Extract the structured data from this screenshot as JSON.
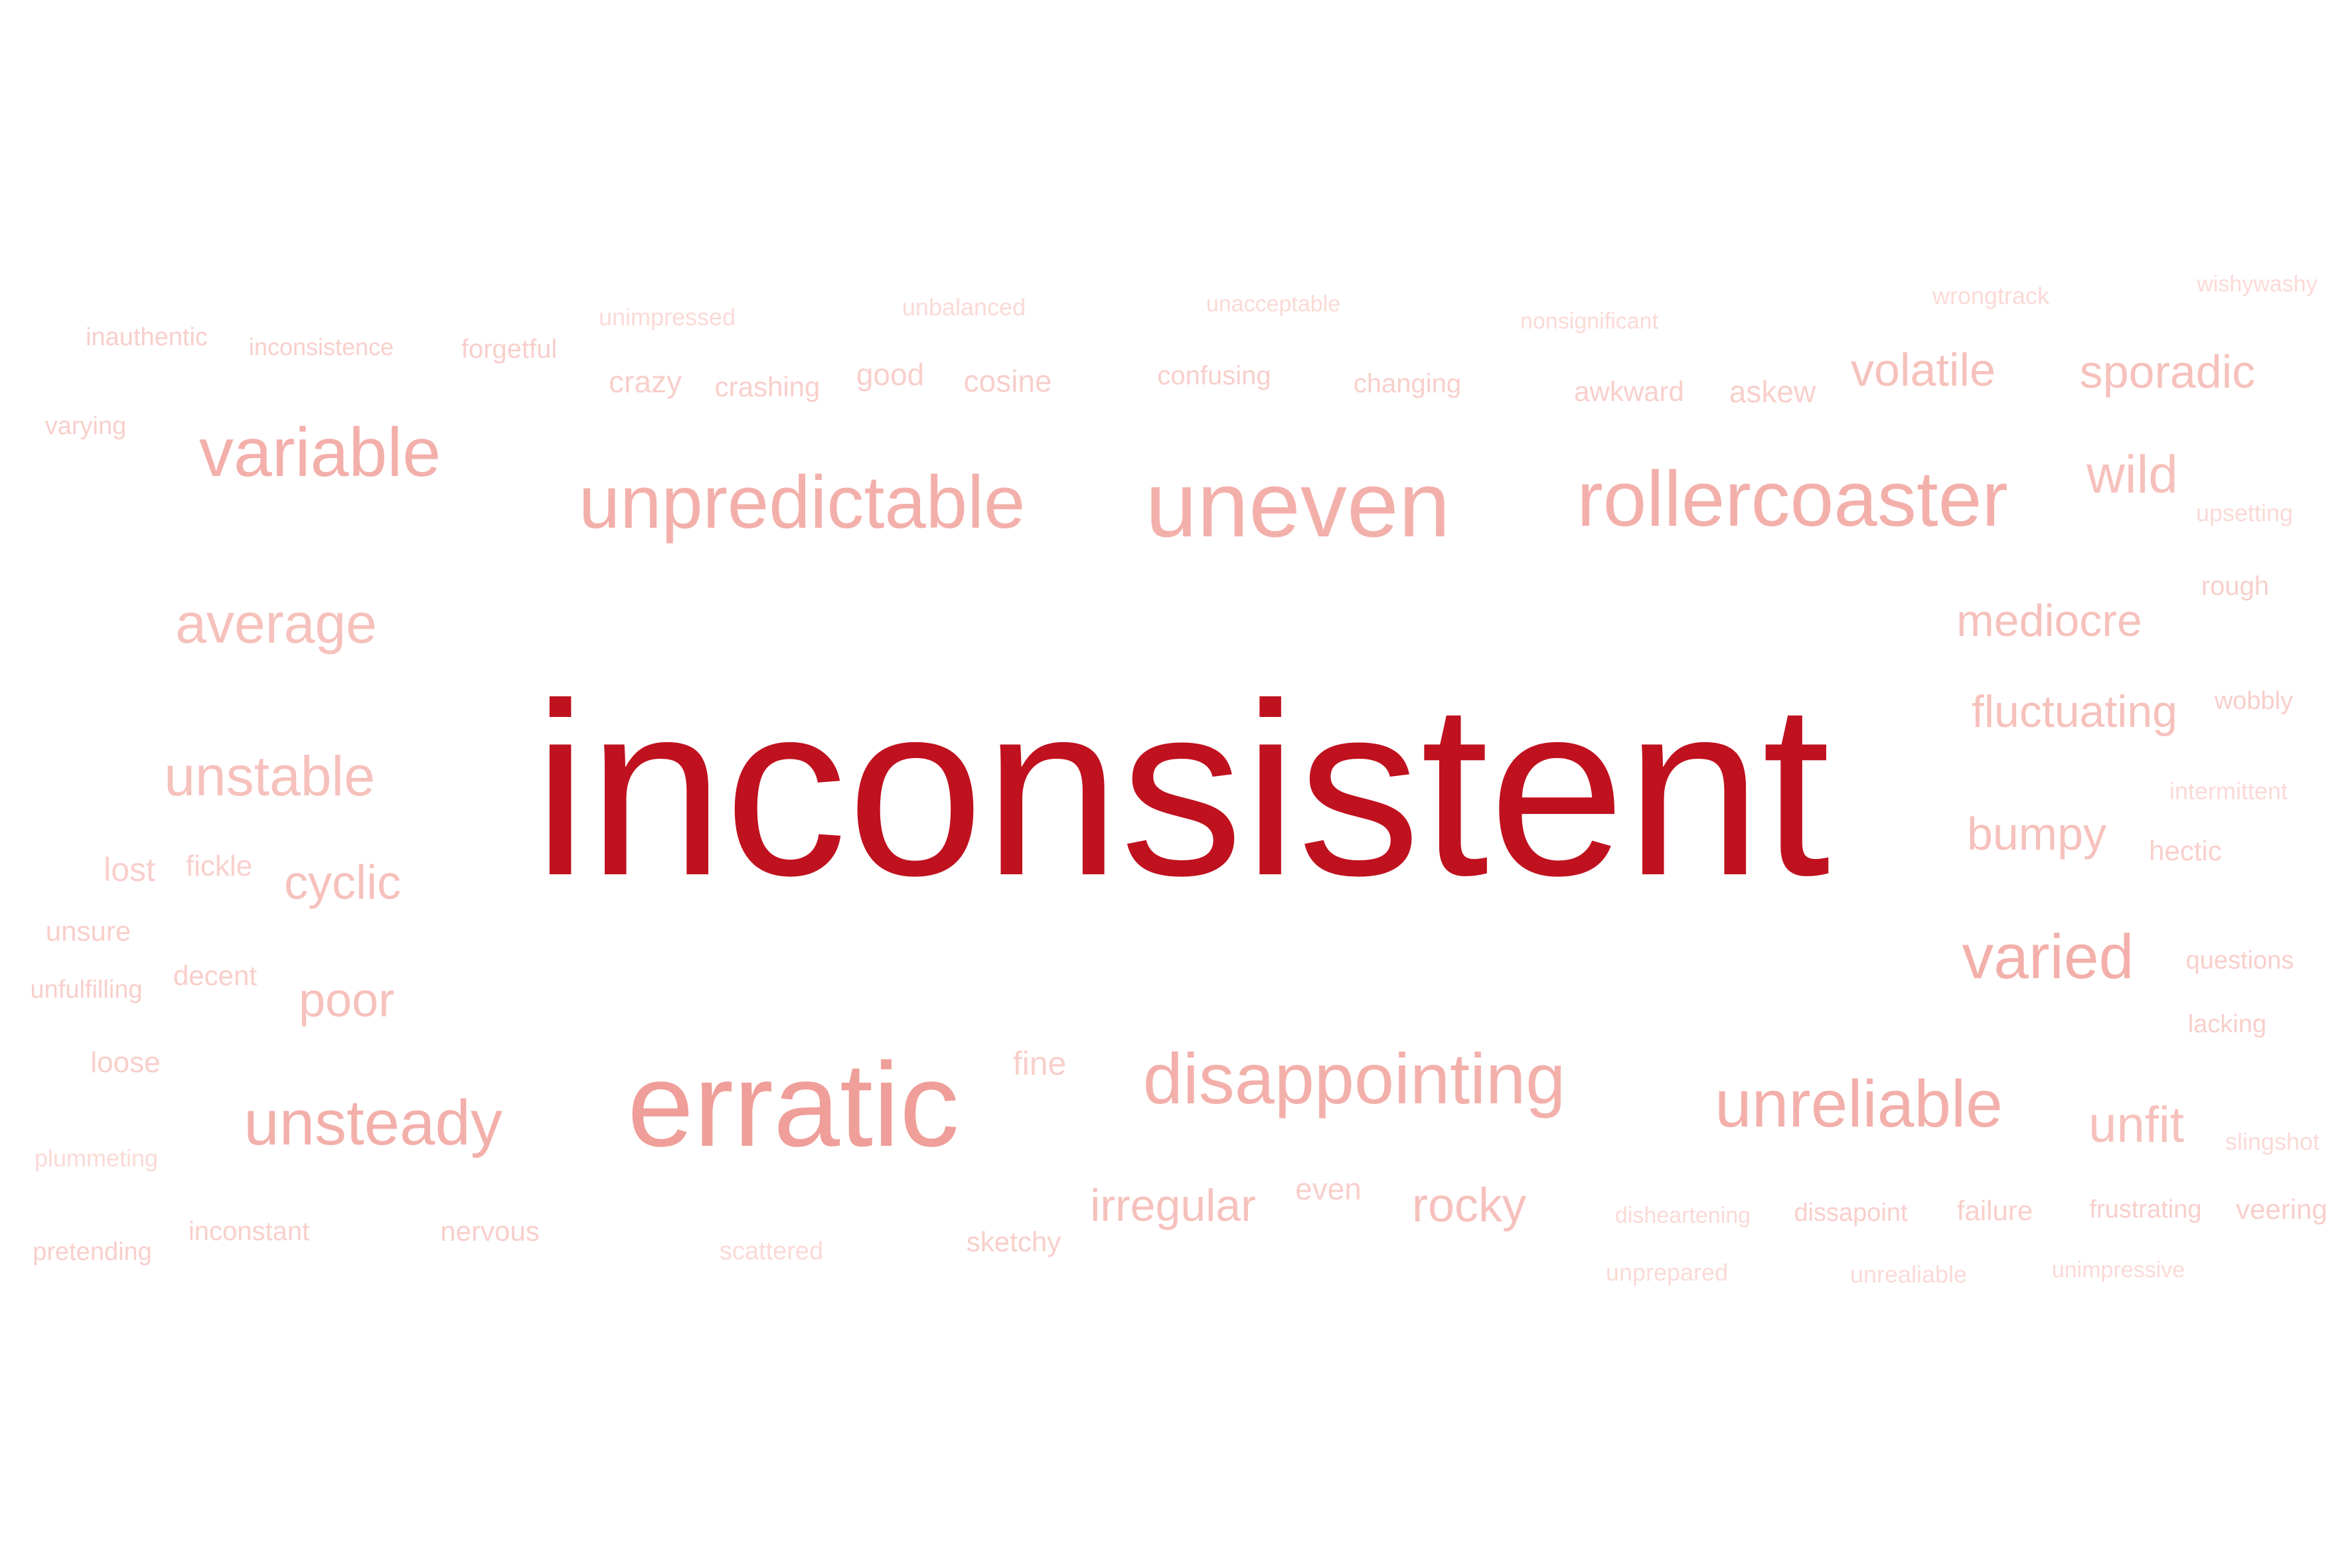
{
  "colors": {
    "background": "#ffffff",
    "primary": "#c0111f",
    "dark": "#ef9e99",
    "medium": "#f3b0ab",
    "light": "#f6c1bc",
    "lighter": "#f8cfcb",
    "faint": "#fadad6"
  },
  "words": [
    {
      "text": "inconsistent",
      "tone": "primary"
    },
    {
      "text": "erratic",
      "tone": "dark"
    },
    {
      "text": "uneven",
      "tone": "medium"
    },
    {
      "text": "rollercoaster",
      "tone": "medium"
    },
    {
      "text": "unpredictable",
      "tone": "medium"
    },
    {
      "text": "disappointing",
      "tone": "medium"
    },
    {
      "text": "unreliable",
      "tone": "medium"
    },
    {
      "text": "variable",
      "tone": "medium"
    },
    {
      "text": "unsteady",
      "tone": "medium"
    },
    {
      "text": "varied",
      "tone": "medium"
    },
    {
      "text": "average",
      "tone": "light"
    },
    {
      "text": "unstable",
      "tone": "light"
    },
    {
      "text": "volatile",
      "tone": "light"
    },
    {
      "text": "sporadic",
      "tone": "light"
    },
    {
      "text": "wild",
      "tone": "light"
    },
    {
      "text": "mediocre",
      "tone": "light"
    },
    {
      "text": "fluctuating",
      "tone": "light"
    },
    {
      "text": "bumpy",
      "tone": "light"
    },
    {
      "text": "unfit",
      "tone": "light"
    },
    {
      "text": "irregular",
      "tone": "light"
    },
    {
      "text": "rocky",
      "tone": "light"
    },
    {
      "text": "poor",
      "tone": "light"
    },
    {
      "text": "cyclic",
      "tone": "light"
    },
    {
      "text": "crazy",
      "tone": "lighter"
    },
    {
      "text": "good",
      "tone": "lighter"
    },
    {
      "text": "cosine",
      "tone": "lighter"
    },
    {
      "text": "crashing",
      "tone": "lighter"
    },
    {
      "text": "confusing",
      "tone": "lighter"
    },
    {
      "text": "changing",
      "tone": "lighter"
    },
    {
      "text": "awkward",
      "tone": "lighter"
    },
    {
      "text": "askew",
      "tone": "lighter"
    },
    {
      "text": "forgetful",
      "tone": "lighter"
    },
    {
      "text": "lost",
      "tone": "lighter"
    },
    {
      "text": "fickle",
      "tone": "lighter"
    },
    {
      "text": "unsure",
      "tone": "lighter"
    },
    {
      "text": "decent",
      "tone": "lighter"
    },
    {
      "text": "unfulfilling",
      "tone": "lighter"
    },
    {
      "text": "loose",
      "tone": "lighter"
    },
    {
      "text": "fine",
      "tone": "lighter"
    },
    {
      "text": "even",
      "tone": "lighter"
    },
    {
      "text": "nervous",
      "tone": "lighter"
    },
    {
      "text": "hectic",
      "tone": "lighter"
    },
    {
      "text": "failure",
      "tone": "lighter"
    },
    {
      "text": "frustrating",
      "tone": "lighter"
    },
    {
      "text": "veering",
      "tone": "lighter"
    },
    {
      "text": "sketchy",
      "tone": "lighter"
    },
    {
      "text": "inconstant",
      "tone": "lighter"
    },
    {
      "text": "varying",
      "tone": "lighter"
    },
    {
      "text": "rough",
      "tone": "lighter"
    },
    {
      "text": "wobbly",
      "tone": "lighter"
    },
    {
      "text": "lacking",
      "tone": "lighter"
    },
    {
      "text": "questions",
      "tone": "lighter"
    },
    {
      "text": "pretending",
      "tone": "lighter"
    },
    {
      "text": "inauthentic",
      "tone": "lighter"
    },
    {
      "text": "inconsistence",
      "tone": "lighter"
    },
    {
      "text": "dissapoint",
      "tone": "lighter"
    },
    {
      "text": "scattered",
      "tone": "faint"
    },
    {
      "text": "plummeting",
      "tone": "faint"
    },
    {
      "text": "unimpressed",
      "tone": "faint"
    },
    {
      "text": "unbalanced",
      "tone": "faint"
    },
    {
      "text": "unacceptable",
      "tone": "faint"
    },
    {
      "text": "nonsignificant",
      "tone": "faint"
    },
    {
      "text": "wrongtrack",
      "tone": "faint"
    },
    {
      "text": "wishywashy",
      "tone": "faint"
    },
    {
      "text": "upsetting",
      "tone": "faint"
    },
    {
      "text": "intermittent",
      "tone": "faint"
    },
    {
      "text": "slingshot",
      "tone": "faint"
    },
    {
      "text": "disheartening",
      "tone": "faint"
    },
    {
      "text": "unprepared",
      "tone": "faint"
    },
    {
      "text": "unrealiable",
      "tone": "faint"
    },
    {
      "text": "unimpressive",
      "tone": "faint"
    }
  ]
}
